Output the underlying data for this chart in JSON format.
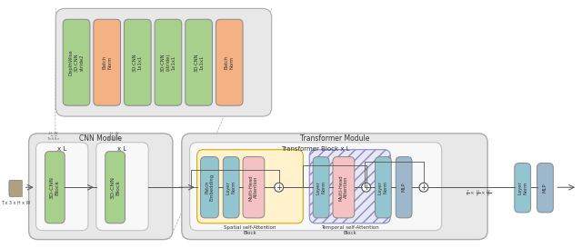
{
  "title_cnn": "CNN Module",
  "title_transformer": "Transformer Module",
  "title_transformer_block": "Transformer Block x L",
  "title_spatial": "Spatial self-Attention\nBlock",
  "title_temporal": "Temporal self-Attention\nBlock",
  "colors": {
    "outer_box": "#e8e8e8",
    "inner_box_white": "#f8f8f8",
    "green_block": "#a8d08d",
    "orange_block": "#f4b183",
    "teal_block": "#92c5d0",
    "blue_block": "#9db8cc",
    "pink_block": "#f4c2c2",
    "yellow_bg": "#fff2cc",
    "hatch_bg": "#e8e8f5",
    "white": "#ffffff",
    "line": "#555555",
    "text": "#333333",
    "outer_edge": "#aaaaaa",
    "inner_edge": "#bbbbbb"
  },
  "input_label": "T x 3 x H x W",
  "xL_label": "x L",
  "detail_labels": [
    "DepthWise\n3D-CNN\nstride2",
    "BatchNorm",
    "3D-CNN\n1x1x1",
    "3D-CNN\n(stride)\n1x1x1",
    "3D-CNN\n1x1x1",
    "BatchNorm"
  ],
  "detail_colors": [
    "green",
    "orange",
    "green",
    "green",
    "green",
    "orange"
  ]
}
